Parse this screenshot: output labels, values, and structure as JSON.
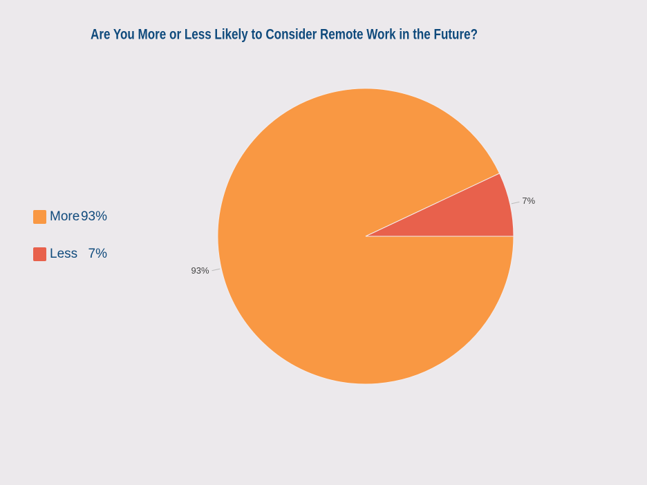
{
  "chart_data": {
    "type": "pie",
    "title": "Are You More or Less Likely to Consider Remote Work in the Future?",
    "categories": [
      "More",
      "Less"
    ],
    "values": [
      93,
      7
    ],
    "value_labels": [
      "93%",
      "7%"
    ],
    "colors": [
      "#f99843",
      "#e8614c"
    ],
    "legend": "left"
  }
}
